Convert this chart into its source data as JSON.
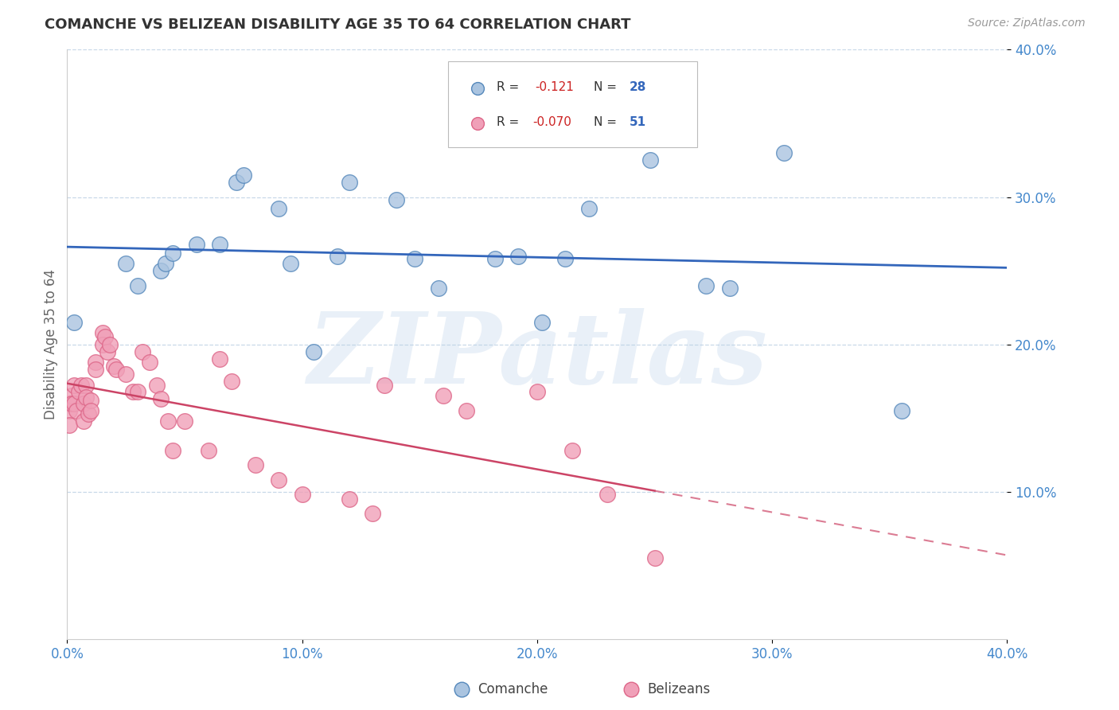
{
  "title": "COMANCHE VS BELIZEAN DISABILITY AGE 35 TO 64 CORRELATION CHART",
  "source": "Source: ZipAtlas.com",
  "ylabel": "Disability Age 35 to 64",
  "watermark": "ZIPatlas",
  "xlim": [
    0.0,
    0.4
  ],
  "ylim": [
    0.0,
    0.4
  ],
  "xticks": [
    0.0,
    0.1,
    0.2,
    0.3,
    0.4
  ],
  "yticks": [
    0.1,
    0.2,
    0.3,
    0.4
  ],
  "xticklabels": [
    "0.0%",
    "10.0%",
    "20.0%",
    "30.0%",
    "40.0%"
  ],
  "yticklabels": [
    "10.0%",
    "20.0%",
    "30.0%",
    "40.0%"
  ],
  "background_color": "#ffffff",
  "grid_color": "#c8d8e8",
  "comanche_color": "#aac4e0",
  "belizean_color": "#f0a0b8",
  "comanche_edge": "#5588bb",
  "belizean_edge": "#dd6688",
  "comanche_R": "-0.121",
  "comanche_N": "28",
  "belizean_R": "-0.070",
  "belizean_N": "51",
  "comanche_line_color": "#3366bb",
  "belizean_line_color": "#cc4466",
  "comanche_x": [
    0.003,
    0.025,
    0.03,
    0.04,
    0.042,
    0.045,
    0.055,
    0.065,
    0.072,
    0.075,
    0.09,
    0.095,
    0.105,
    0.115,
    0.12,
    0.14,
    0.148,
    0.158,
    0.182,
    0.192,
    0.202,
    0.212,
    0.222,
    0.248,
    0.272,
    0.282,
    0.305,
    0.355
  ],
  "comanche_y": [
    0.215,
    0.255,
    0.24,
    0.25,
    0.255,
    0.262,
    0.268,
    0.268,
    0.31,
    0.315,
    0.292,
    0.255,
    0.195,
    0.26,
    0.31,
    0.298,
    0.258,
    0.238,
    0.258,
    0.26,
    0.215,
    0.258,
    0.292,
    0.325,
    0.24,
    0.238,
    0.33,
    0.155
  ],
  "belizean_x": [
    0.001,
    0.001,
    0.001,
    0.002,
    0.002,
    0.003,
    0.003,
    0.004,
    0.005,
    0.006,
    0.007,
    0.007,
    0.008,
    0.008,
    0.009,
    0.01,
    0.01,
    0.012,
    0.012,
    0.015,
    0.015,
    0.016,
    0.017,
    0.018,
    0.02,
    0.021,
    0.025,
    0.028,
    0.03,
    0.032,
    0.035,
    0.038,
    0.04,
    0.043,
    0.045,
    0.05,
    0.06,
    0.065,
    0.07,
    0.08,
    0.09,
    0.1,
    0.12,
    0.13,
    0.135,
    0.16,
    0.17,
    0.2,
    0.215,
    0.23,
    0.25
  ],
  "belizean_y": [
    0.16,
    0.155,
    0.145,
    0.165,
    0.16,
    0.172,
    0.16,
    0.155,
    0.168,
    0.172,
    0.16,
    0.148,
    0.172,
    0.164,
    0.153,
    0.162,
    0.155,
    0.188,
    0.183,
    0.208,
    0.2,
    0.205,
    0.195,
    0.2,
    0.185,
    0.183,
    0.18,
    0.168,
    0.168,
    0.195,
    0.188,
    0.172,
    0.163,
    0.148,
    0.128,
    0.148,
    0.128,
    0.19,
    0.175,
    0.118,
    0.108,
    0.098,
    0.095,
    0.085,
    0.172,
    0.165,
    0.155,
    0.168,
    0.128,
    0.098,
    0.055
  ]
}
